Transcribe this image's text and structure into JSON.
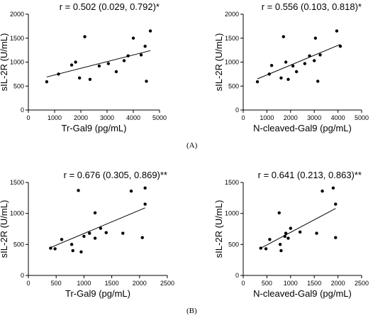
{
  "panel_labels": [
    "(A)",
    "(B)"
  ],
  "chart_data": [
    {
      "type": "scatter",
      "title": "r = 0.502 (0.029, 0.792)*",
      "xlabel": "Tr-Gal9 (pg/mL)",
      "ylabel": "sIL-2R (U/mL)",
      "xlim": [
        0,
        5000
      ],
      "ylim": [
        0,
        2000
      ],
      "xticks": [
        0,
        1000,
        2000,
        3000,
        4000,
        5000
      ],
      "yticks": [
        0,
        500,
        1000,
        1500,
        2000
      ],
      "grid": false,
      "points": [
        [
          700,
          590
        ],
        [
          1150,
          750
        ],
        [
          1650,
          940
        ],
        [
          1800,
          1000
        ],
        [
          1950,
          670
        ],
        [
          2150,
          1530
        ],
        [
          2350,
          640
        ],
        [
          2700,
          920
        ],
        [
          3050,
          970
        ],
        [
          3350,
          800
        ],
        [
          3650,
          1030
        ],
        [
          3800,
          1130
        ],
        [
          4000,
          1500
        ],
        [
          4300,
          1150
        ],
        [
          4450,
          1330
        ],
        [
          4500,
          600
        ],
        [
          4650,
          1650
        ]
      ],
      "trend": [
        [
          700,
          690
        ],
        [
          4650,
          1240
        ]
      ]
    },
    {
      "type": "scatter",
      "title": "r = 0.556 (0.103, 0.818)*",
      "xlabel": "N-cleaved-Gal9 (pg/mL)",
      "ylabel": "sIL-2R (U/mL)",
      "xlim": [
        0,
        5000
      ],
      "ylim": [
        0,
        2000
      ],
      "xticks": [
        0,
        1000,
        2000,
        3000,
        4000,
        5000
      ],
      "yticks": [
        0,
        500,
        1000,
        1500,
        2000
      ],
      "grid": false,
      "points": [
        [
          600,
          590
        ],
        [
          1100,
          750
        ],
        [
          1200,
          930
        ],
        [
          1600,
          670
        ],
        [
          1700,
          1530
        ],
        [
          1800,
          1000
        ],
        [
          1900,
          640
        ],
        [
          2100,
          920
        ],
        [
          2250,
          800
        ],
        [
          2600,
          970
        ],
        [
          2800,
          1130
        ],
        [
          3000,
          1030
        ],
        [
          3050,
          1500
        ],
        [
          3150,
          600
        ],
        [
          3250,
          1150
        ],
        [
          3950,
          1650
        ],
        [
          4100,
          1330
        ]
      ],
      "trend": [
        [
          600,
          650
        ],
        [
          4100,
          1370
        ]
      ]
    },
    {
      "type": "scatter",
      "title": "r = 0.676 (0.305, 0.869)**",
      "xlabel": "Tr-Gal9 (pg/mL)",
      "ylabel": "sIL-2R (U/mL)",
      "xlim": [
        0,
        2500
      ],
      "ylim": [
        0,
        1500
      ],
      "xticks": [
        0,
        500,
        1000,
        1500,
        2000,
        2500
      ],
      "yticks": [
        0,
        500,
        1000,
        1500
      ],
      "grid": false,
      "points": [
        [
          400,
          440
        ],
        [
          480,
          430
        ],
        [
          600,
          580
        ],
        [
          780,
          500
        ],
        [
          800,
          400
        ],
        [
          900,
          1370
        ],
        [
          950,
          380
        ],
        [
          1000,
          630
        ],
        [
          1100,
          680
        ],
        [
          1200,
          1010
        ],
        [
          1200,
          600
        ],
        [
          1300,
          760
        ],
        [
          1400,
          690
        ],
        [
          1700,
          680
        ],
        [
          1850,
          1360
        ],
        [
          2050,
          610
        ],
        [
          2100,
          1410
        ],
        [
          2100,
          1150
        ]
      ],
      "trend": [
        [
          400,
          450
        ],
        [
          2100,
          1090
        ]
      ]
    },
    {
      "type": "scatter",
      "title": "r = 0.641 (0.213, 0.863)**",
      "xlabel": "N-cleaved-Gal9 (pg/mL)",
      "ylabel": "sIL-2R (U/mL)",
      "xlim": [
        0,
        2500
      ],
      "ylim": [
        0,
        1500
      ],
      "xticks": [
        0,
        500,
        1000,
        1500,
        2000,
        2500
      ],
      "yticks": [
        0,
        500,
        1000,
        1500
      ],
      "grid": false,
      "points": [
        [
          370,
          440
        ],
        [
          480,
          430
        ],
        [
          560,
          580
        ],
        [
          760,
          1010
        ],
        [
          780,
          500
        ],
        [
          800,
          400
        ],
        [
          880,
          630
        ],
        [
          900,
          680
        ],
        [
          950,
          600
        ],
        [
          1000,
          760
        ],
        [
          1200,
          700
        ],
        [
          1550,
          680
        ],
        [
          1670,
          1360
        ],
        [
          1900,
          1410
        ],
        [
          1950,
          1150
        ],
        [
          1950,
          610
        ]
      ],
      "trend": [
        [
          370,
          440
        ],
        [
          1950,
          1080
        ]
      ]
    }
  ]
}
